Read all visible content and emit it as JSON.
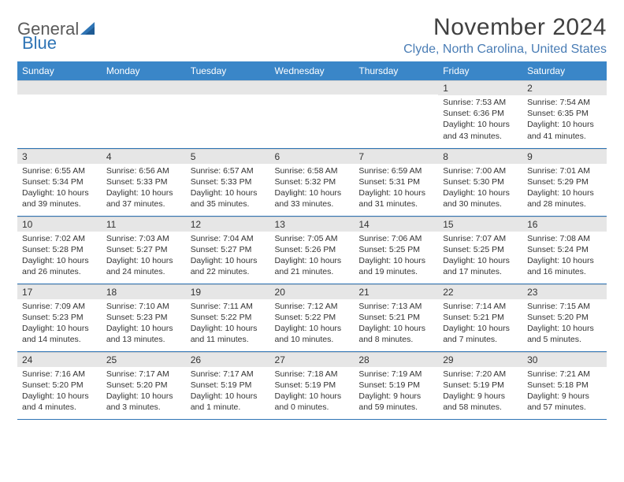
{
  "brand": {
    "word1": "General",
    "word2": "Blue"
  },
  "title": "November 2024",
  "location": "Clyde, North Carolina, United States",
  "colors": {
    "header_bg": "#3a86c8",
    "header_text": "#ffffff",
    "accent": "#2e74b5",
    "daynum_bg": "#e6e6e6",
    "body_bg": "#ffffff",
    "text": "#333333",
    "location_text": "#4a7db5"
  },
  "weekdays": [
    "Sunday",
    "Monday",
    "Tuesday",
    "Wednesday",
    "Thursday",
    "Friday",
    "Saturday"
  ],
  "weeks": [
    [
      {
        "n": "",
        "sr": "",
        "ss": "",
        "dl": ""
      },
      {
        "n": "",
        "sr": "",
        "ss": "",
        "dl": ""
      },
      {
        "n": "",
        "sr": "",
        "ss": "",
        "dl": ""
      },
      {
        "n": "",
        "sr": "",
        "ss": "",
        "dl": ""
      },
      {
        "n": "",
        "sr": "",
        "ss": "",
        "dl": ""
      },
      {
        "n": "1",
        "sr": "Sunrise: 7:53 AM",
        "ss": "Sunset: 6:36 PM",
        "dl": "Daylight: 10 hours and 43 minutes."
      },
      {
        "n": "2",
        "sr": "Sunrise: 7:54 AM",
        "ss": "Sunset: 6:35 PM",
        "dl": "Daylight: 10 hours and 41 minutes."
      }
    ],
    [
      {
        "n": "3",
        "sr": "Sunrise: 6:55 AM",
        "ss": "Sunset: 5:34 PM",
        "dl": "Daylight: 10 hours and 39 minutes."
      },
      {
        "n": "4",
        "sr": "Sunrise: 6:56 AM",
        "ss": "Sunset: 5:33 PM",
        "dl": "Daylight: 10 hours and 37 minutes."
      },
      {
        "n": "5",
        "sr": "Sunrise: 6:57 AM",
        "ss": "Sunset: 5:33 PM",
        "dl": "Daylight: 10 hours and 35 minutes."
      },
      {
        "n": "6",
        "sr": "Sunrise: 6:58 AM",
        "ss": "Sunset: 5:32 PM",
        "dl": "Daylight: 10 hours and 33 minutes."
      },
      {
        "n": "7",
        "sr": "Sunrise: 6:59 AM",
        "ss": "Sunset: 5:31 PM",
        "dl": "Daylight: 10 hours and 31 minutes."
      },
      {
        "n": "8",
        "sr": "Sunrise: 7:00 AM",
        "ss": "Sunset: 5:30 PM",
        "dl": "Daylight: 10 hours and 30 minutes."
      },
      {
        "n": "9",
        "sr": "Sunrise: 7:01 AM",
        "ss": "Sunset: 5:29 PM",
        "dl": "Daylight: 10 hours and 28 minutes."
      }
    ],
    [
      {
        "n": "10",
        "sr": "Sunrise: 7:02 AM",
        "ss": "Sunset: 5:28 PM",
        "dl": "Daylight: 10 hours and 26 minutes."
      },
      {
        "n": "11",
        "sr": "Sunrise: 7:03 AM",
        "ss": "Sunset: 5:27 PM",
        "dl": "Daylight: 10 hours and 24 minutes."
      },
      {
        "n": "12",
        "sr": "Sunrise: 7:04 AM",
        "ss": "Sunset: 5:27 PM",
        "dl": "Daylight: 10 hours and 22 minutes."
      },
      {
        "n": "13",
        "sr": "Sunrise: 7:05 AM",
        "ss": "Sunset: 5:26 PM",
        "dl": "Daylight: 10 hours and 21 minutes."
      },
      {
        "n": "14",
        "sr": "Sunrise: 7:06 AM",
        "ss": "Sunset: 5:25 PM",
        "dl": "Daylight: 10 hours and 19 minutes."
      },
      {
        "n": "15",
        "sr": "Sunrise: 7:07 AM",
        "ss": "Sunset: 5:25 PM",
        "dl": "Daylight: 10 hours and 17 minutes."
      },
      {
        "n": "16",
        "sr": "Sunrise: 7:08 AM",
        "ss": "Sunset: 5:24 PM",
        "dl": "Daylight: 10 hours and 16 minutes."
      }
    ],
    [
      {
        "n": "17",
        "sr": "Sunrise: 7:09 AM",
        "ss": "Sunset: 5:23 PM",
        "dl": "Daylight: 10 hours and 14 minutes."
      },
      {
        "n": "18",
        "sr": "Sunrise: 7:10 AM",
        "ss": "Sunset: 5:23 PM",
        "dl": "Daylight: 10 hours and 13 minutes."
      },
      {
        "n": "19",
        "sr": "Sunrise: 7:11 AM",
        "ss": "Sunset: 5:22 PM",
        "dl": "Daylight: 10 hours and 11 minutes."
      },
      {
        "n": "20",
        "sr": "Sunrise: 7:12 AM",
        "ss": "Sunset: 5:22 PM",
        "dl": "Daylight: 10 hours and 10 minutes."
      },
      {
        "n": "21",
        "sr": "Sunrise: 7:13 AM",
        "ss": "Sunset: 5:21 PM",
        "dl": "Daylight: 10 hours and 8 minutes."
      },
      {
        "n": "22",
        "sr": "Sunrise: 7:14 AM",
        "ss": "Sunset: 5:21 PM",
        "dl": "Daylight: 10 hours and 7 minutes."
      },
      {
        "n": "23",
        "sr": "Sunrise: 7:15 AM",
        "ss": "Sunset: 5:20 PM",
        "dl": "Daylight: 10 hours and 5 minutes."
      }
    ],
    [
      {
        "n": "24",
        "sr": "Sunrise: 7:16 AM",
        "ss": "Sunset: 5:20 PM",
        "dl": "Daylight: 10 hours and 4 minutes."
      },
      {
        "n": "25",
        "sr": "Sunrise: 7:17 AM",
        "ss": "Sunset: 5:20 PM",
        "dl": "Daylight: 10 hours and 3 minutes."
      },
      {
        "n": "26",
        "sr": "Sunrise: 7:17 AM",
        "ss": "Sunset: 5:19 PM",
        "dl": "Daylight: 10 hours and 1 minute."
      },
      {
        "n": "27",
        "sr": "Sunrise: 7:18 AM",
        "ss": "Sunset: 5:19 PM",
        "dl": "Daylight: 10 hours and 0 minutes."
      },
      {
        "n": "28",
        "sr": "Sunrise: 7:19 AM",
        "ss": "Sunset: 5:19 PM",
        "dl": "Daylight: 9 hours and 59 minutes."
      },
      {
        "n": "29",
        "sr": "Sunrise: 7:20 AM",
        "ss": "Sunset: 5:19 PM",
        "dl": "Daylight: 9 hours and 58 minutes."
      },
      {
        "n": "30",
        "sr": "Sunrise: 7:21 AM",
        "ss": "Sunset: 5:18 PM",
        "dl": "Daylight: 9 hours and 57 minutes."
      }
    ]
  ]
}
